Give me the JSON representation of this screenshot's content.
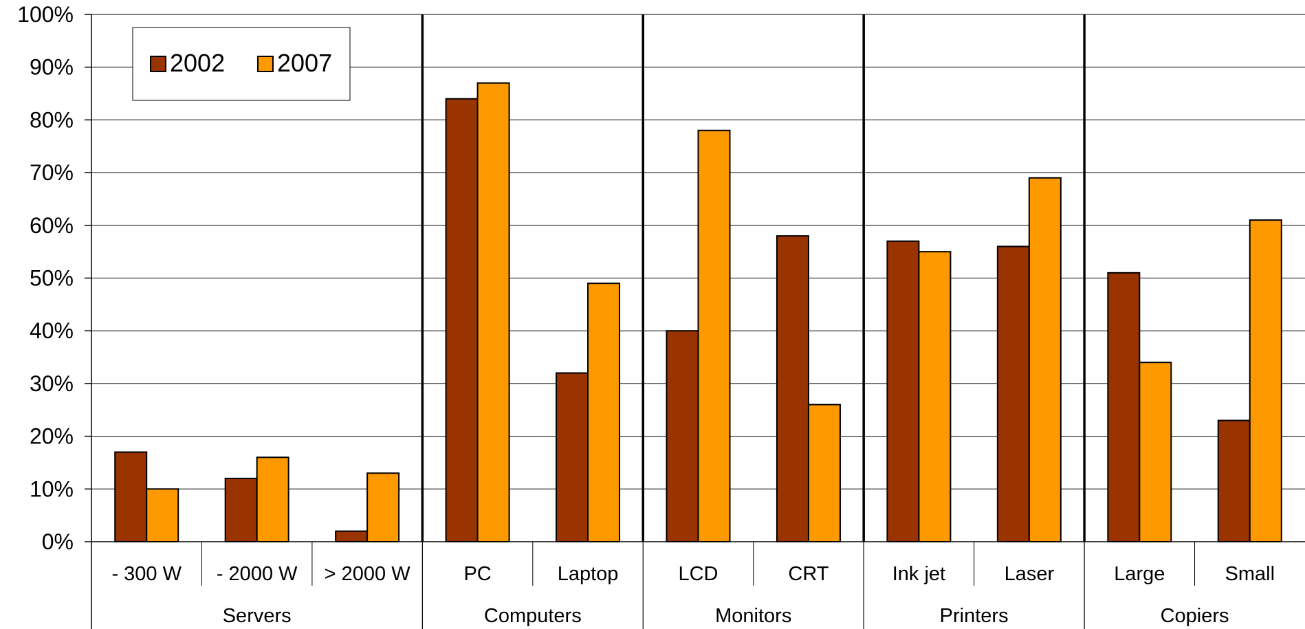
{
  "chart_data": {
    "type": "bar",
    "title": "",
    "xlabel": "",
    "ylabel": "",
    "ylim": [
      0,
      100
    ],
    "y_ticks": [
      "0%",
      "10%",
      "20%",
      "30%",
      "40%",
      "50%",
      "60%",
      "70%",
      "80%",
      "90%",
      "100%"
    ],
    "grid": true,
    "legend_position": "top-left",
    "colors": {
      "2002": "#993300",
      "2007": "#FF9900",
      "grid": "#000000"
    },
    "groups": [
      {
        "name": "Servers",
        "categories": [
          "- 300 W",
          "- 2000 W",
          "> 2000 W"
        ]
      },
      {
        "name": "Computers",
        "categories": [
          "PC",
          "Laptop"
        ]
      },
      {
        "name": "Monitors",
        "categories": [
          "LCD",
          "CRT"
        ]
      },
      {
        "name": "Printers",
        "categories": [
          "Ink jet",
          "Laser"
        ]
      },
      {
        "name": "Copiers",
        "categories": [
          "Large",
          "Small"
        ]
      }
    ],
    "categories": [
      "- 300 W",
      "- 2000 W",
      "> 2000 W",
      "PC",
      "Laptop",
      "LCD",
      "CRT",
      "Ink jet",
      "Laser",
      "Large",
      "Small"
    ],
    "series": [
      {
        "name": "2002",
        "values": [
          17,
          12,
          2,
          84,
          32,
          40,
          58,
          57,
          56,
          51,
          23
        ]
      },
      {
        "name": "2007",
        "values": [
          10,
          16,
          13,
          87,
          49,
          78,
          26,
          55,
          69,
          34,
          61
        ]
      }
    ]
  }
}
